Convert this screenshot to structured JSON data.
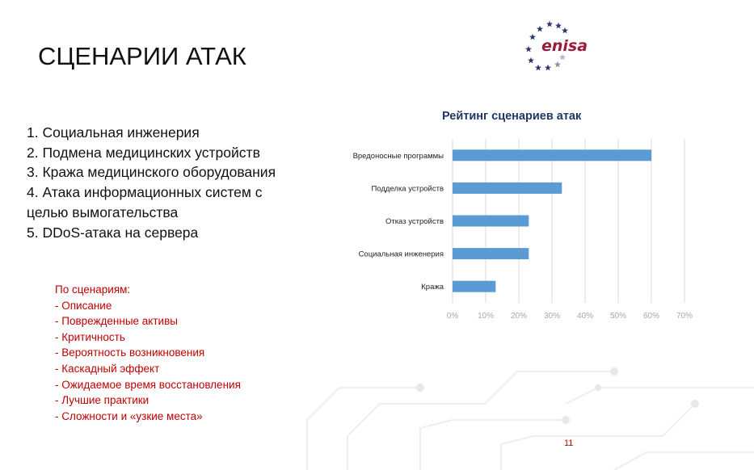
{
  "slide": {
    "title": "СЦЕНАРИИ АТАК",
    "logo_text": "enisa",
    "page_number": "11",
    "scenarios": [
      "1. Социальная инженерия",
      "2. Подмена медицинских устройств",
      "3. Кража медицинского оборудования",
      "4. Атака информационных систем с",
      "целью вымогательства",
      "5. DDoS-атака на сервера"
    ],
    "criteria_heading": "По сценариям:",
    "criteria": [
      "- Описание",
      "- Поврежденные активы",
      "- Критичность",
      "- Вероятность возникновения",
      "- Каскадный эффект",
      "- Ожидаемое время восстановления",
      "- Лучшие практики",
      "- Сложности и «узкие места»"
    ]
  },
  "colors": {
    "bar": "#5b9bd5",
    "title": "#1f3864",
    "accent": "#c00000"
  },
  "chart_data": {
    "type": "bar",
    "orientation": "horizontal",
    "title": "Рейтинг сценариев атак",
    "categories": [
      "Вредоносные программы",
      "Подделка устройств",
      "Отказ устройств",
      "Социальная инженерия",
      "Кража"
    ],
    "values": [
      60,
      33,
      23,
      23,
      13
    ],
    "xlim": [
      0,
      70
    ],
    "xticks": [
      "0%",
      "10%",
      "20%",
      "30%",
      "40%",
      "50%",
      "60%",
      "70%"
    ],
    "grid": true,
    "xlabel": "",
    "ylabel": ""
  }
}
